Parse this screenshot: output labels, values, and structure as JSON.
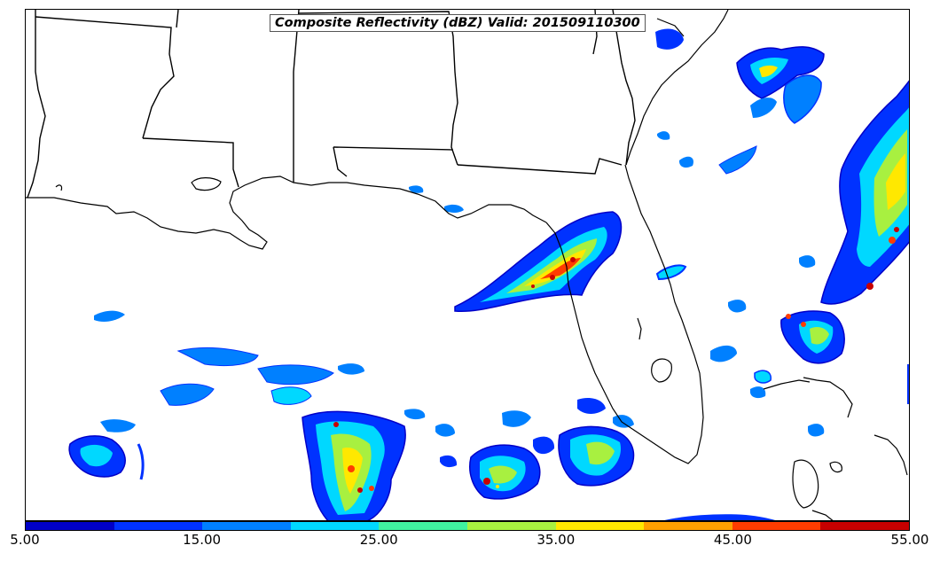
{
  "title": "Composite Reflectivity (dBZ) Valid: 201509110300",
  "colorbar": {
    "colors": [
      "#0000c8",
      "#0032ff",
      "#0080ff",
      "#00d8ff",
      "#40f0a0",
      "#a8f040",
      "#ffe800",
      "#ffa000",
      "#ff3c00",
      "#c80000"
    ],
    "tick_labels": [
      "5.00",
      "15.00",
      "25.00",
      "35.00",
      "45.00",
      "55.00"
    ]
  },
  "map": {
    "region": "Gulf of Mexico / Southeast US",
    "features": [
      "state-boundaries",
      "coastlines",
      "radar-reflectivity"
    ]
  }
}
